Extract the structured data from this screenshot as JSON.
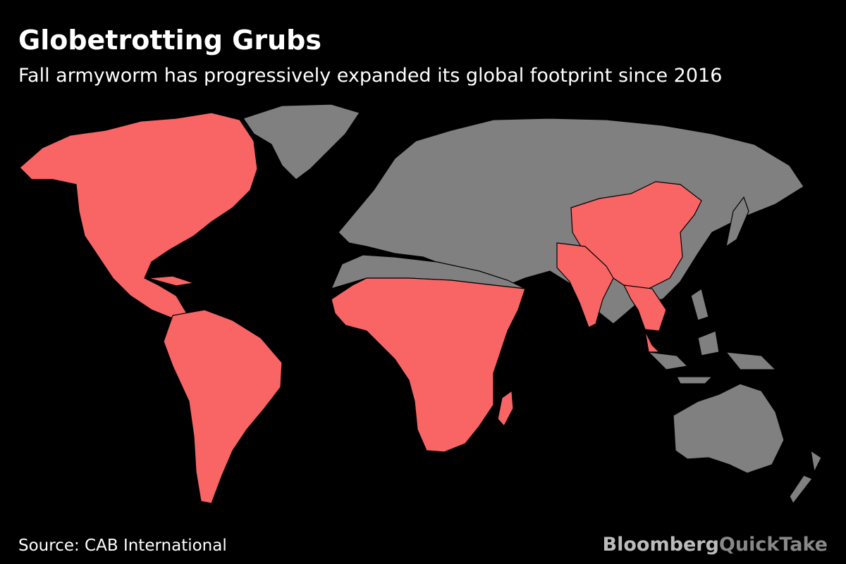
{
  "header": {
    "title": "Globetrotting Grubs",
    "subtitle": "Fall armyworm has progressively expanded its global footprint since 2016"
  },
  "footer": {
    "source": "Source: CAB International",
    "brand": "Bloomberg",
    "brand_suffix": "QuickTake"
  }
}
